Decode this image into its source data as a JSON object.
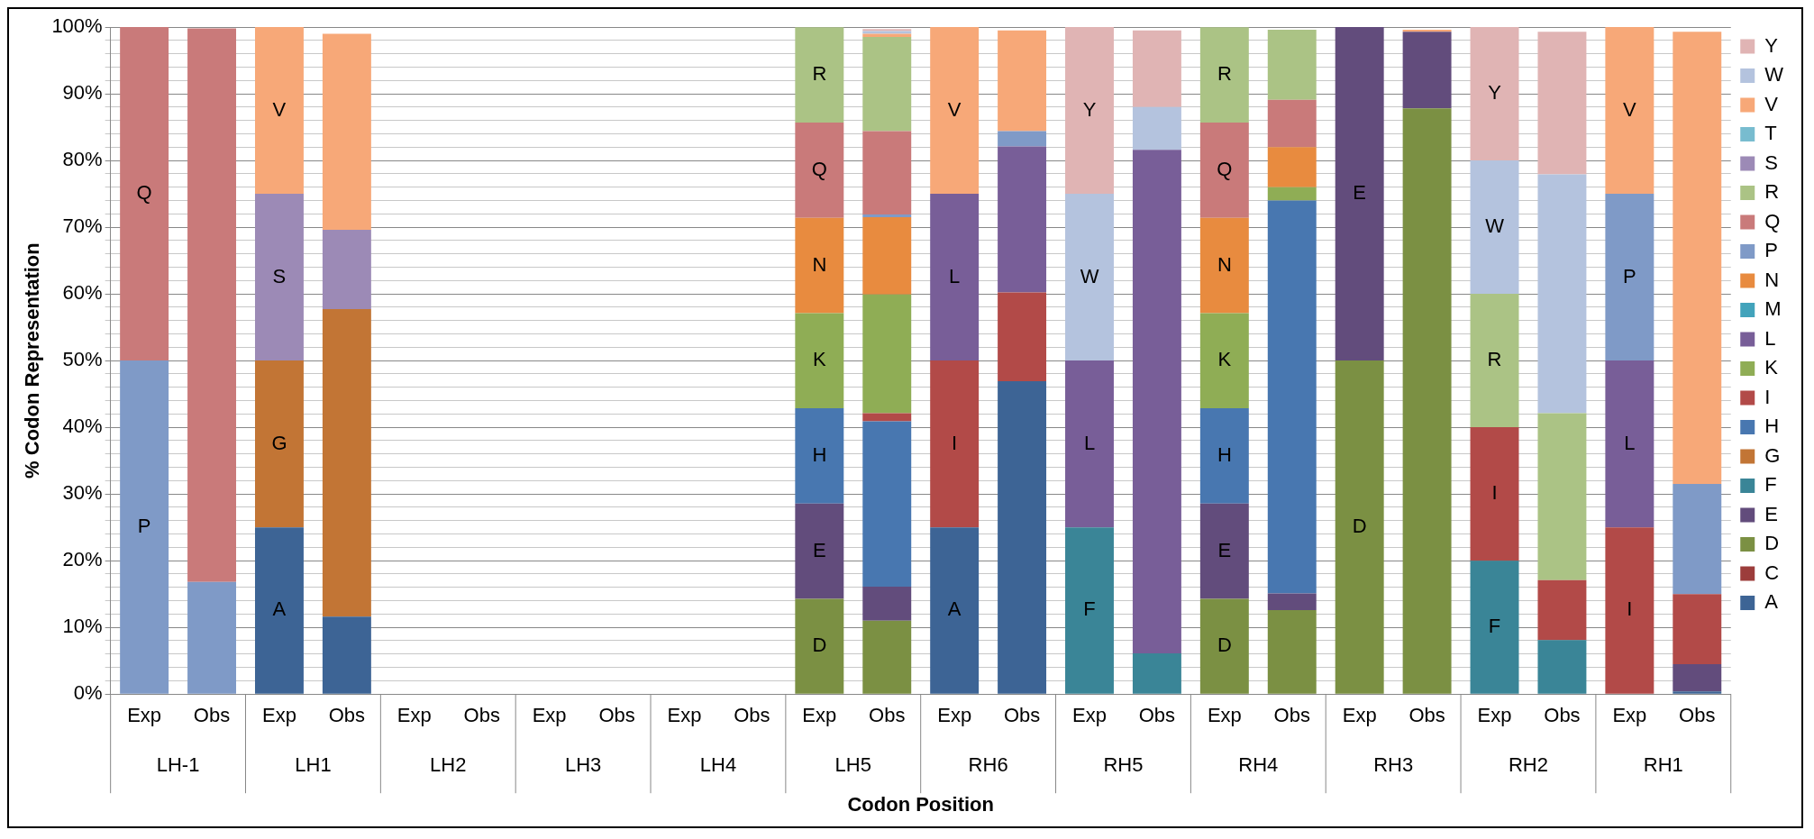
{
  "chart_data": {
    "type": "bar",
    "stacked": true,
    "xlabel": "Codon Position",
    "ylabel": "% Codon Representation",
    "categories": [
      "Exp",
      "Obs",
      "Exp",
      "Obs",
      "Exp",
      "Obs",
      "Exp",
      "Obs",
      "Exp",
      "Obs",
      "Exp",
      "Obs",
      "Exp",
      "Obs",
      "Exp",
      "Obs",
      "Exp",
      "Obs",
      "Exp",
      "Obs",
      "Exp",
      "Obs",
      "Exp",
      "Obs"
    ],
    "annotations": [
      "LH-1",
      "LH1",
      "LH2",
      "LH3",
      "LH4",
      "LH5",
      "RH6",
      "RH5",
      "RH4",
      "RH3",
      "RH2",
      "RH1"
    ],
    "ylim": [
      0,
      100
    ],
    "yticks": [
      {
        "value": 0,
        "label": "0%"
      },
      {
        "value": 2,
        "label": null
      },
      {
        "value": 4,
        "label": null
      },
      {
        "value": 6,
        "label": null
      },
      {
        "value": 8,
        "label": null
      },
      {
        "value": 10,
        "label": "10%"
      },
      {
        "value": 12,
        "label": null
      },
      {
        "value": 14,
        "label": null
      },
      {
        "value": 16,
        "label": null
      },
      {
        "value": 18,
        "label": null
      },
      {
        "value": 20,
        "label": "20%"
      },
      {
        "value": 22,
        "label": null
      },
      {
        "value": 24,
        "label": null
      },
      {
        "value": 26,
        "label": null
      },
      {
        "value": 28,
        "label": null
      },
      {
        "value": 30,
        "label": "30%"
      },
      {
        "value": 32,
        "label": null
      },
      {
        "value": 34,
        "label": null
      },
      {
        "value": 36,
        "label": null
      },
      {
        "value": 38,
        "label": null
      },
      {
        "value": 40,
        "label": "40%"
      },
      {
        "value": 42,
        "label": null
      },
      {
        "value": 44,
        "label": null
      },
      {
        "value": 46,
        "label": null
      },
      {
        "value": 48,
        "label": null
      },
      {
        "value": 50,
        "label": "50%"
      },
      {
        "value": 52,
        "label": null
      },
      {
        "value": 54,
        "label": null
      },
      {
        "value": 56,
        "label": null
      },
      {
        "value": 58,
        "label": null
      },
      {
        "value": 60,
        "label": "60%"
      },
      {
        "value": 62,
        "label": null
      },
      {
        "value": 64,
        "label": null
      },
      {
        "value": 66,
        "label": null
      },
      {
        "value": 68,
        "label": null
      },
      {
        "value": 70,
        "label": "70%"
      },
      {
        "value": 72,
        "label": null
      },
      {
        "value": 74,
        "label": null
      },
      {
        "value": 76,
        "label": null
      },
      {
        "value": 78,
        "label": null
      },
      {
        "value": 80,
        "label": "80%"
      },
      {
        "value": 82,
        "label": null
      },
      {
        "value": 84,
        "label": null
      },
      {
        "value": 86,
        "label": null
      },
      {
        "value": 88,
        "label": null
      },
      {
        "value": 90,
        "label": "90%"
      },
      {
        "value": 92,
        "label": null
      },
      {
        "value": 94,
        "label": null
      },
      {
        "value": 96,
        "label": null
      },
      {
        "value": 98,
        "label": null
      },
      {
        "value": 100,
        "label": "100%"
      }
    ],
    "grid": "y",
    "legend": "right",
    "series": [
      {
        "name": "A",
        "color": "#3d6495",
        "values": [
          null,
          null,
          25,
          11.6,
          null,
          null,
          null,
          null,
          null,
          null,
          null,
          null,
          25,
          46.9,
          null,
          null,
          null,
          null,
          null,
          null,
          null,
          null,
          null,
          0.4
        ],
        "value_labels": [
          null,
          null,
          "A",
          null,
          null,
          null,
          null,
          null,
          null,
          null,
          null,
          null,
          "A",
          null,
          null,
          null,
          null,
          null,
          null,
          null,
          null,
          null,
          null,
          null
        ]
      },
      {
        "name": "C",
        "color": "#9c3d3b",
        "values": [
          null,
          null,
          null,
          null,
          null,
          null,
          null,
          null,
          null,
          null,
          null,
          null,
          null,
          null,
          null,
          null,
          null,
          null,
          null,
          null,
          null,
          null,
          null,
          null
        ]
      },
      {
        "name": "D",
        "color": "#7b9043",
        "values": [
          null,
          null,
          null,
          null,
          null,
          null,
          null,
          null,
          null,
          null,
          14.28,
          11.0,
          null,
          null,
          null,
          null,
          14.28,
          12.6,
          50,
          87.8,
          null,
          null,
          null,
          null
        ],
        "value_labels": [
          null,
          null,
          null,
          null,
          null,
          null,
          null,
          null,
          null,
          null,
          "D",
          null,
          null,
          null,
          null,
          null,
          "D",
          null,
          "D",
          null,
          null,
          null,
          null,
          null
        ]
      },
      {
        "name": "E",
        "color": "#624c7c",
        "values": [
          null,
          null,
          null,
          null,
          null,
          null,
          null,
          null,
          null,
          null,
          14.28,
          5.1,
          null,
          null,
          null,
          null,
          14.28,
          2.5,
          50,
          11.5,
          null,
          null,
          null,
          4.1
        ],
        "value_labels": [
          null,
          null,
          null,
          null,
          null,
          null,
          null,
          null,
          null,
          null,
          "E",
          null,
          null,
          null,
          null,
          null,
          "E",
          null,
          "E",
          null,
          null,
          null,
          null,
          null
        ]
      },
      {
        "name": "F",
        "color": "#3a8597",
        "values": [
          null,
          null,
          null,
          null,
          null,
          null,
          null,
          null,
          null,
          null,
          null,
          null,
          null,
          null,
          25,
          6.1,
          null,
          null,
          null,
          null,
          20,
          8.1,
          null,
          null
        ],
        "value_labels": [
          null,
          null,
          null,
          null,
          null,
          null,
          null,
          null,
          null,
          null,
          null,
          null,
          null,
          null,
          "F",
          null,
          null,
          null,
          null,
          null,
          "F",
          null,
          null,
          null
        ]
      },
      {
        "name": "G",
        "color": "#c27535",
        "values": [
          null,
          null,
          25,
          46.1,
          null,
          null,
          null,
          null,
          null,
          null,
          null,
          null,
          null,
          null,
          null,
          null,
          null,
          null,
          null,
          null,
          null,
          null,
          null,
          null
        ],
        "value_labels": [
          null,
          null,
          "G",
          null,
          null,
          null,
          null,
          null,
          null,
          null,
          null,
          null,
          null,
          null,
          null,
          null,
          null,
          null,
          null,
          null,
          null,
          null,
          null,
          null
        ]
      },
      {
        "name": "H",
        "color": "#4877b0",
        "values": [
          null,
          null,
          null,
          null,
          null,
          null,
          null,
          null,
          null,
          null,
          14.28,
          24.8,
          null,
          null,
          null,
          null,
          14.28,
          58.9,
          null,
          null,
          null,
          null,
          null,
          null
        ],
        "value_labels": [
          null,
          null,
          null,
          null,
          null,
          null,
          null,
          null,
          null,
          null,
          "H",
          null,
          null,
          null,
          null,
          null,
          "H",
          null,
          null,
          null,
          null,
          null,
          null,
          null
        ]
      },
      {
        "name": "I",
        "color": "#b24a48",
        "values": [
          null,
          null,
          null,
          null,
          null,
          null,
          null,
          null,
          null,
          null,
          null,
          1.2,
          25,
          13.3,
          null,
          null,
          null,
          null,
          null,
          null,
          20,
          9.0,
          25,
          10.5
        ],
        "value_labels": [
          null,
          null,
          null,
          null,
          null,
          null,
          null,
          null,
          null,
          null,
          null,
          null,
          "I",
          null,
          null,
          null,
          null,
          null,
          null,
          null,
          "I",
          null,
          "I",
          null
        ]
      },
      {
        "name": "K",
        "color": "#8fad55",
        "values": [
          null,
          null,
          null,
          null,
          null,
          null,
          null,
          null,
          null,
          null,
          14.28,
          17.8,
          null,
          null,
          null,
          null,
          14.28,
          2.0,
          null,
          null,
          null,
          null,
          null,
          null
        ],
        "value_labels": [
          null,
          null,
          null,
          null,
          null,
          null,
          null,
          null,
          null,
          null,
          "K",
          null,
          null,
          null,
          null,
          null,
          "K",
          null,
          null,
          null,
          null,
          null,
          null,
          null
        ]
      },
      {
        "name": "L",
        "color": "#785e98",
        "values": [
          null,
          null,
          null,
          null,
          null,
          null,
          null,
          null,
          null,
          null,
          null,
          null,
          25,
          21.9,
          25,
          75.5,
          null,
          null,
          null,
          null,
          null,
          null,
          25,
          null
        ],
        "value_labels": [
          null,
          null,
          null,
          null,
          null,
          null,
          null,
          null,
          null,
          null,
          null,
          null,
          "L",
          null,
          "L",
          null,
          null,
          null,
          null,
          null,
          null,
          null,
          "L",
          null
        ]
      },
      {
        "name": "M",
        "color": "#42a3bb",
        "values": [
          null,
          null,
          null,
          null,
          null,
          null,
          null,
          null,
          null,
          null,
          null,
          null,
          null,
          null,
          null,
          null,
          null,
          null,
          null,
          null,
          null,
          null,
          null,
          null
        ]
      },
      {
        "name": "N",
        "color": "#e88b3f",
        "values": [
          null,
          null,
          null,
          null,
          null,
          null,
          null,
          null,
          null,
          null,
          14.28,
          11.6,
          null,
          null,
          null,
          null,
          14.28,
          6.0,
          null,
          null,
          null,
          null,
          null,
          null
        ],
        "value_labels": [
          null,
          null,
          null,
          null,
          null,
          null,
          null,
          null,
          null,
          null,
          "N",
          null,
          null,
          null,
          null,
          null,
          "N",
          null,
          null,
          null,
          null,
          null,
          null,
          null
        ]
      },
      {
        "name": "P",
        "color": "#7f9ac7",
        "values": [
          50,
          16.8,
          null,
          null,
          null,
          null,
          null,
          null,
          null,
          null,
          null,
          0.4,
          null,
          2.3,
          null,
          null,
          null,
          null,
          null,
          null,
          null,
          null,
          25,
          16.5
        ],
        "value_labels": [
          "P",
          null,
          null,
          null,
          null,
          null,
          null,
          null,
          null,
          null,
          null,
          null,
          null,
          null,
          null,
          null,
          null,
          null,
          null,
          null,
          null,
          null,
          "P",
          null
        ]
      },
      {
        "name": "Q",
        "color": "#c97a7a",
        "values": [
          50,
          83.0,
          null,
          null,
          null,
          null,
          null,
          null,
          null,
          null,
          14.28,
          12.5,
          null,
          null,
          null,
          null,
          14.28,
          7.1,
          null,
          null,
          null,
          null,
          null,
          null
        ],
        "value_labels": [
          "Q",
          null,
          null,
          null,
          null,
          null,
          null,
          null,
          null,
          null,
          "Q",
          null,
          null,
          null,
          null,
          null,
          "Q",
          null,
          null,
          null,
          null,
          null,
          null,
          null
        ]
      },
      {
        "name": "R",
        "color": "#abc385",
        "values": [
          null,
          null,
          null,
          null,
          null,
          null,
          null,
          null,
          null,
          null,
          14.28,
          14.1,
          null,
          null,
          null,
          null,
          14.28,
          10.5,
          null,
          null,
          20,
          25.0,
          null,
          null
        ],
        "value_labels": [
          null,
          null,
          null,
          null,
          null,
          null,
          null,
          null,
          null,
          null,
          "R",
          null,
          null,
          null,
          null,
          null,
          "R",
          null,
          null,
          null,
          "R",
          null,
          null,
          null
        ]
      },
      {
        "name": "S",
        "color": "#9c8ab6",
        "values": [
          null,
          null,
          25,
          11.9,
          null,
          null,
          null,
          null,
          null,
          null,
          null,
          null,
          null,
          null,
          null,
          null,
          null,
          null,
          null,
          null,
          null,
          null,
          null,
          null
        ],
        "value_labels": [
          null,
          null,
          "S",
          null,
          null,
          null,
          null,
          null,
          null,
          null,
          null,
          null,
          null,
          null,
          null,
          null,
          null,
          null,
          null,
          null,
          null,
          null,
          null,
          null
        ]
      },
      {
        "name": "T",
        "color": "#78bccf",
        "values": [
          null,
          null,
          null,
          null,
          null,
          null,
          null,
          null,
          null,
          null,
          null,
          null,
          null,
          null,
          null,
          null,
          null,
          null,
          null,
          null,
          null,
          null,
          null,
          null
        ]
      },
      {
        "name": "V",
        "color": "#f7a878",
        "values": [
          null,
          null,
          25,
          29.4,
          null,
          null,
          null,
          null,
          null,
          null,
          null,
          0.5,
          25,
          15.1,
          null,
          null,
          null,
          null,
          null,
          0.3,
          null,
          null,
          25,
          67.8
        ],
        "value_labels": [
          null,
          null,
          "V",
          null,
          null,
          null,
          null,
          null,
          null,
          null,
          null,
          null,
          "V",
          null,
          null,
          null,
          null,
          null,
          null,
          null,
          null,
          null,
          "V",
          null
        ]
      },
      {
        "name": "W",
        "color": "#b4c3de",
        "values": [
          null,
          null,
          null,
          null,
          null,
          null,
          null,
          null,
          null,
          null,
          null,
          0.4,
          null,
          null,
          25,
          6.4,
          null,
          null,
          null,
          null,
          20,
          35.8,
          null,
          null
        ],
        "value_labels": [
          null,
          null,
          null,
          null,
          null,
          null,
          null,
          null,
          null,
          null,
          null,
          null,
          null,
          null,
          "W",
          null,
          null,
          null,
          null,
          null,
          "W",
          null,
          null,
          null
        ]
      },
      {
        "name": "Y",
        "color": "#e0b4b4",
        "values": [
          null,
          null,
          null,
          null,
          null,
          null,
          null,
          null,
          null,
          null,
          null,
          0.3,
          null,
          null,
          25,
          11.5,
          null,
          null,
          null,
          null,
          20,
          21.4,
          null,
          null
        ],
        "value_labels": [
          null,
          null,
          null,
          null,
          null,
          null,
          null,
          null,
          null,
          null,
          null,
          null,
          null,
          null,
          "Y",
          null,
          null,
          null,
          null,
          null,
          "Y",
          null,
          null,
          null
        ]
      }
    ]
  }
}
